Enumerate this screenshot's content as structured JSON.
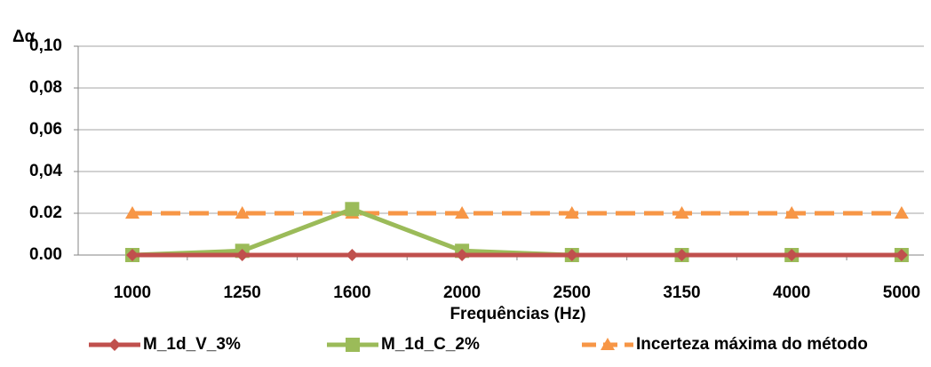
{
  "chart_data": {
    "type": "line",
    "y_label": "Δα",
    "x_label": "Frequências (Hz)",
    "categories": [
      "1000",
      "1250",
      "1600",
      "2000",
      "2500",
      "3150",
      "4000",
      "5000"
    ],
    "series": [
      {
        "name": "M_1d_V_3%",
        "color": "#c0504d",
        "marker": "diamond",
        "line_style": "solid",
        "values": [
          0,
          0,
          0,
          0,
          0,
          0,
          0,
          0
        ]
      },
      {
        "name": "M_1d_C_2%",
        "color": "#9bbb59",
        "marker": "square",
        "line_style": "solid",
        "values": [
          0,
          0.002,
          0.022,
          0.002,
          0,
          0,
          0,
          0
        ]
      },
      {
        "name": "Incerteza máxima do método",
        "color": "#f79646",
        "marker": "triangle",
        "line_style": "dashed",
        "values": [
          0.02,
          0.02,
          0.02,
          0.02,
          0.02,
          0.02,
          0.02,
          0.02
        ]
      }
    ],
    "ylim": [
      0,
      0.1
    ],
    "yticks": [
      {
        "value": 0,
        "label": "0.00"
      },
      {
        "value": 0.02,
        "label": "0.02"
      },
      {
        "value": 0.04,
        "label": "0,04"
      },
      {
        "value": 0.06,
        "label": "0,06"
      },
      {
        "value": 0.08,
        "label": "0,08"
      },
      {
        "value": 0.1,
        "label": "0,10"
      }
    ],
    "grid": true,
    "legend": "bottom"
  }
}
